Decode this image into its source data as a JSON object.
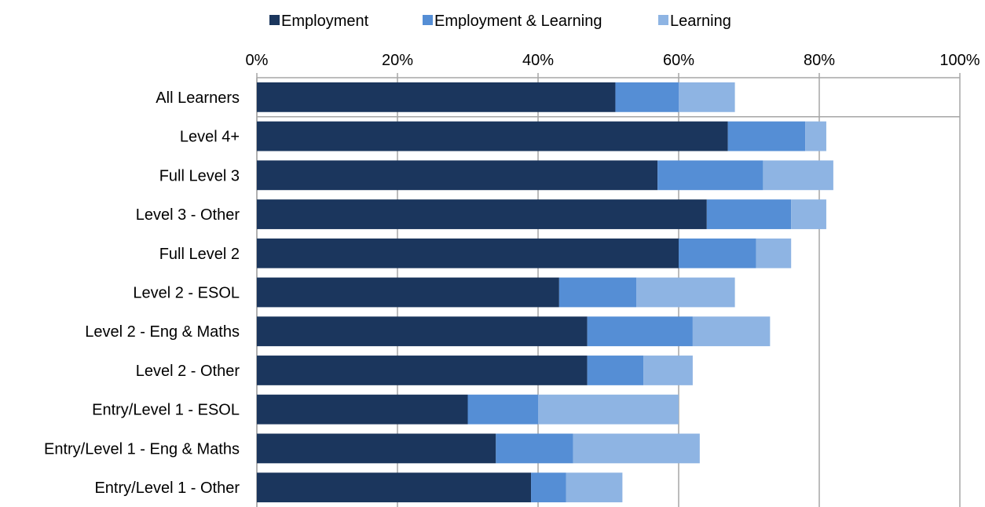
{
  "chart_data": {
    "type": "bar",
    "orientation": "horizontal",
    "stacked": true,
    "categories": [
      "All Learners",
      "Level 4+",
      "Full Level 3",
      "Level 3 - Other",
      "Full Level 2",
      "Level 2 - ESOL",
      "Level 2 - Eng & Maths",
      "Level 2 - Other",
      "Entry/Level 1 - ESOL",
      "Entry/Level 1 - Eng & Maths",
      "Entry/Level 1 - Other"
    ],
    "series": [
      {
        "name": "Employment",
        "color": "#1b365d",
        "values": [
          51,
          67,
          57,
          64,
          60,
          43,
          47,
          47,
          30,
          34,
          39
        ]
      },
      {
        "name": "Employment & Learning",
        "color": "#558ed5",
        "values": [
          9,
          11,
          15,
          12,
          11,
          11,
          15,
          8,
          10,
          11,
          5
        ]
      },
      {
        "name": "Learning",
        "color": "#8eb4e3",
        "values": [
          8,
          3,
          10,
          5,
          5,
          14,
          11,
          7,
          20,
          18,
          8
        ]
      }
    ],
    "x_ticks": [
      "0%",
      "20%",
      "40%",
      "60%",
      "80%",
      "100%"
    ],
    "xlim": [
      0,
      100
    ],
    "x_unit": "percent",
    "title": "",
    "xlabel": "",
    "ylabel": "",
    "grid": true,
    "legend_position": "top"
  }
}
